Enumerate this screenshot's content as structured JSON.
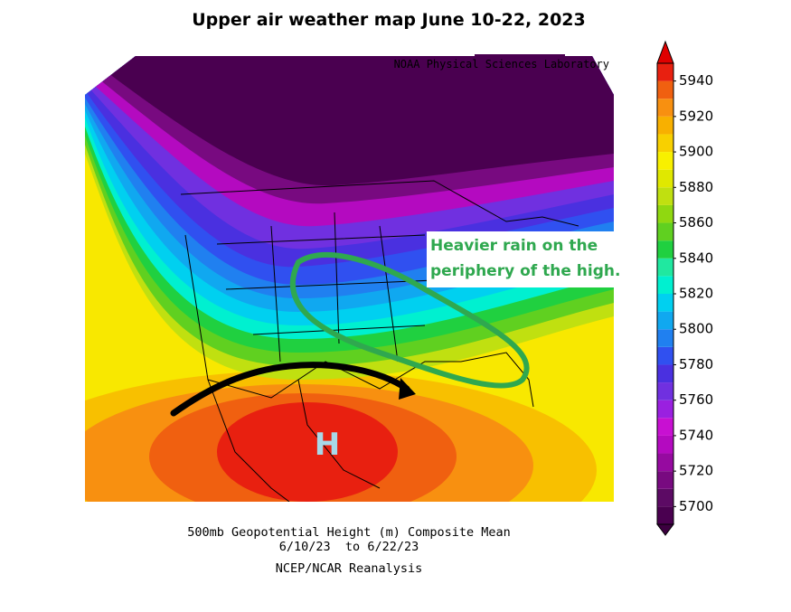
{
  "title": "Upper air weather map June 10-22, 2023",
  "source": "NOAA Physical Sciences Laboratory",
  "annotation": {
    "lines": [
      "Heavier rain on the",
      "periphery of the high."
    ]
  },
  "high_label": "H",
  "footer": {
    "lines": [
      "500mb Geopotential Height (m) Composite Mean",
      "6/10/23  to 6/22/23",
      "NCEP/NCAR Reanalysis"
    ]
  },
  "colorbar": {
    "range": [
      5690,
      5950
    ],
    "ticks": [
      5700,
      5720,
      5740,
      5760,
      5780,
      5800,
      5820,
      5840,
      5860,
      5880,
      5900,
      5920,
      5940
    ],
    "colors": [
      "#4a0050",
      "#5c0a64",
      "#780a80",
      "#960aa0",
      "#b40ac0",
      "#c810d2",
      "#9a20e0",
      "#7030e0",
      "#4a30e0",
      "#3050f0",
      "#2080f0",
      "#10a8f0",
      "#00d0f0",
      "#00f0d0",
      "#20e8a0",
      "#20d040",
      "#60d020",
      "#90d810",
      "#c0e010",
      "#e0e800",
      "#f8f000",
      "#f8d000",
      "#f8b000",
      "#f89010",
      "#f06010",
      "#e82010"
    ]
  }
}
